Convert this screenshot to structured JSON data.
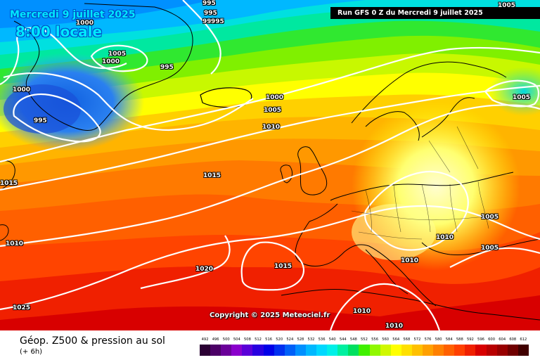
{
  "header": {
    "date_text": "Mercredi 9 juillet 2025",
    "time_text": "8:00 locale",
    "run_text": "Run GFS 0 Z du Mercredi 9 juillet 2025"
  },
  "copyright": "Copyright © 2025 Meteociel.fr",
  "footer": {
    "title": "Géop. Z500 & pression au sol",
    "subtitle": "(+ 6h)"
  },
  "legend": {
    "levels": [
      "492",
      "496",
      "500",
      "504",
      "508",
      "512",
      "516",
      "520",
      "524",
      "528",
      "532",
      "536",
      "540",
      "544",
      "548",
      "552",
      "556",
      "560",
      "564",
      "568",
      "572",
      "576",
      "580",
      "584",
      "588",
      "592",
      "596",
      "600",
      "604",
      "608",
      "612"
    ],
    "colors": [
      "#2a0033",
      "#4b0066",
      "#6a0099",
      "#8a00cc",
      "#5a00d8",
      "#2800e0",
      "#0000e8",
      "#0030f0",
      "#0060f8",
      "#0090ff",
      "#00b8ff",
      "#00d8ff",
      "#00f0e8",
      "#00f0a0",
      "#00e060",
      "#40f000",
      "#90f800",
      "#d0f800",
      "#ffff00",
      "#ffe000",
      "#ffc000",
      "#ffa000",
      "#ff8000",
      "#ff6000",
      "#ff4000",
      "#f02000",
      "#d80000",
      "#b80000",
      "#980000",
      "#700000",
      "#400000"
    ]
  },
  "isobar_labels": [
    "995",
    "995",
    "1000",
    "1005",
    "1000",
    "995",
    "1000",
    "995",
    "1000",
    "1005",
    "1010",
    "1015",
    "1015",
    "1010",
    "1005",
    "1020",
    "1015",
    "1010",
    "1025",
    "1010",
    "1010",
    "1005",
    "1005",
    "1010",
    "995",
    "995",
    "1005"
  ],
  "map_colors": {
    "ocean_west": "#ff7a00",
    "south": "#ff4400",
    "ridge": "#ffff66",
    "isobar_line": "#ffffff",
    "coastline": "#000000"
  }
}
